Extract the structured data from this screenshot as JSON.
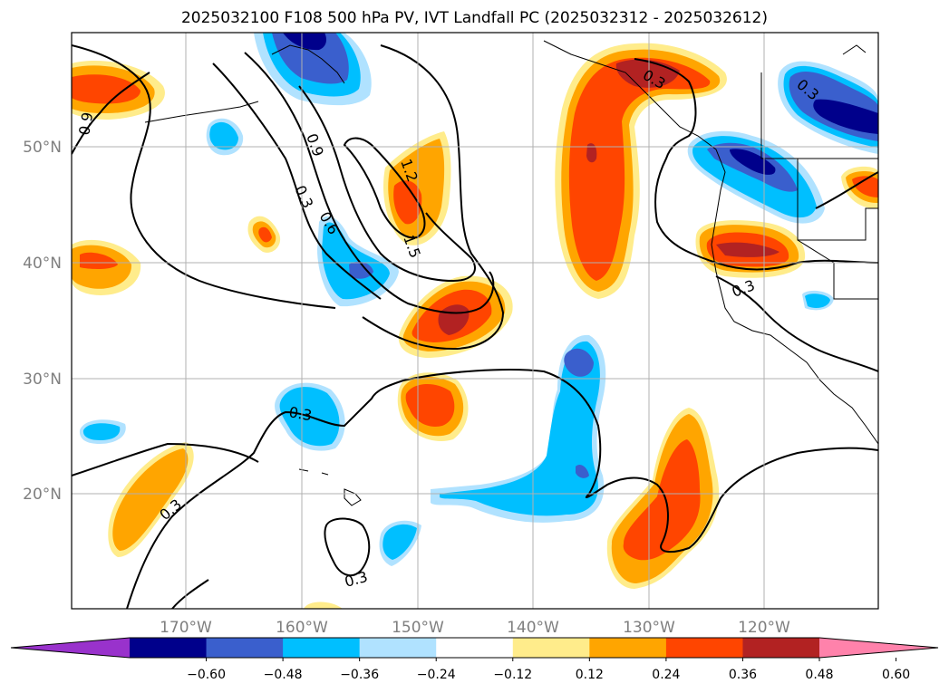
{
  "title": "2025032100 F108 500 hPa PV, IVT Landfall PC (2025032312 - 2025032612)",
  "lon_labels": [
    "170°W",
    "160°W",
    "150°W",
    "140°W",
    "130°W",
    "120°W"
  ],
  "lat_labels": [
    "50°N",
    "40°N",
    "30°N",
    "20°N"
  ],
  "contour_labels": [
    "0.9",
    "0.9",
    "0.6",
    "0.3",
    "1.2",
    "1.5",
    "0.3",
    "0.3",
    "0.3",
    "0.3",
    "0.3",
    "0.3"
  ],
  "colorbar": {
    "ticks": [
      "−0.60",
      "−0.48",
      "−0.36",
      "−0.24",
      "−0.12",
      "0.12",
      "0.24",
      "0.36",
      "0.48",
      "0.60"
    ],
    "colors": [
      "#9932cc",
      "#00008b",
      "#3a5fcd",
      "#00bfff",
      "#b0e2ff",
      "#ffffff",
      "#ffec8b",
      "#ffa500",
      "#ff4500",
      "#b22222",
      "#ff82ab"
    ]
  }
}
